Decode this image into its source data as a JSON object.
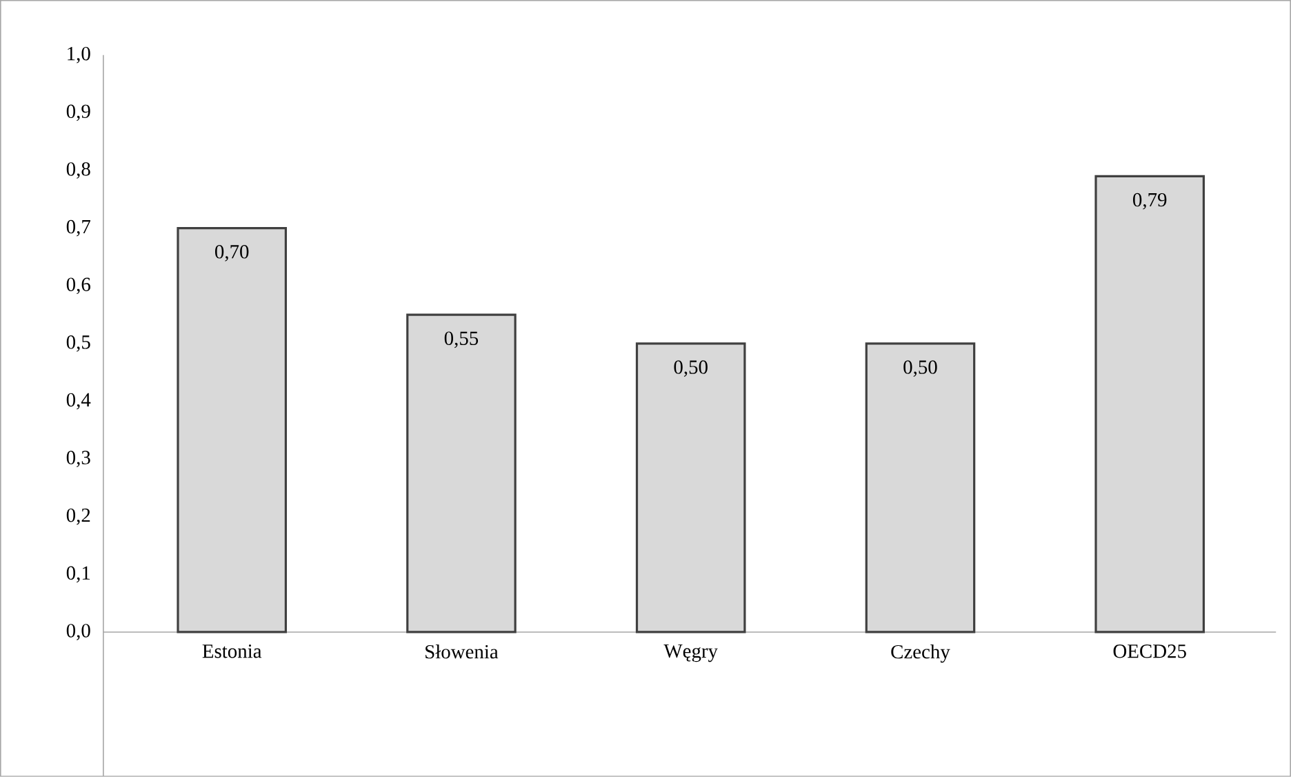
{
  "chart_data": {
    "type": "bar",
    "categories": [
      "Estonia",
      "Słowenia",
      "Węgry",
      "Czechy",
      "OECD25"
    ],
    "values": [
      0.7,
      0.55,
      0.5,
      0.5,
      0.79
    ],
    "value_labels": [
      "0,70",
      "0,55",
      "0,50",
      "0,50",
      "0,79"
    ],
    "color": "#d9d9d9",
    "ylim": [
      0,
      1
    ],
    "yticks": [
      {
        "value": 0,
        "label": "0,0"
      },
      {
        "value": 0.1,
        "label": "0,1"
      },
      {
        "value": 0.2,
        "label": "0,2"
      },
      {
        "value": 0.3,
        "label": "0,3"
      },
      {
        "value": 0.4,
        "label": "0,4"
      },
      {
        "value": 0.5,
        "label": "0,5"
      },
      {
        "value": 0.6,
        "label": "0,6"
      },
      {
        "value": 0.7,
        "label": "0,7"
      },
      {
        "value": 0.8,
        "label": "0,8"
      },
      {
        "value": 0.9,
        "label": "0,9"
      },
      {
        "value": 1.0,
        "label": "1,0"
      }
    ],
    "tick_labels": "xy"
  }
}
